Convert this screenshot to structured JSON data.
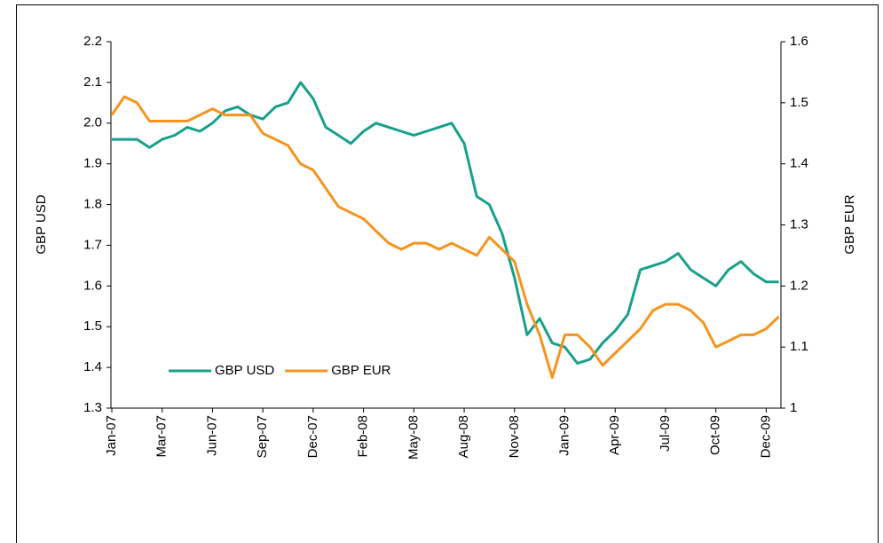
{
  "chart_data": {
    "type": "line",
    "categories": [
      "Jan-07",
      null,
      null,
      null,
      "Mar-07",
      null,
      null,
      null,
      "Jun-07",
      null,
      null,
      null,
      "Sep-07",
      null,
      null,
      null,
      "Dec-07",
      null,
      null,
      null,
      "Feb-08",
      null,
      null,
      null,
      "May-08",
      null,
      null,
      null,
      "Aug-08",
      null,
      null,
      null,
      "Nov-08",
      null,
      null,
      null,
      "Jan-09",
      null,
      null,
      null,
      "Apr-09",
      null,
      null,
      null,
      "Jul-09",
      null,
      null,
      null,
      "Oct-09",
      null,
      null,
      null,
      "Dec-09",
      null
    ],
    "series": [
      {
        "name": "GBP USD",
        "color": "#17a08c",
        "axis": "y",
        "values": [
          1.96,
          1.96,
          1.96,
          1.94,
          1.96,
          1.97,
          1.99,
          1.98,
          2.0,
          2.03,
          2.04,
          2.02,
          2.01,
          2.04,
          2.05,
          2.1,
          2.06,
          1.99,
          1.97,
          1.95,
          1.98,
          2.0,
          1.99,
          1.98,
          1.97,
          1.98,
          1.99,
          2.0,
          1.95,
          1.82,
          1.8,
          1.73,
          1.62,
          1.48,
          1.52,
          1.46,
          1.45,
          1.41,
          1.42,
          1.46,
          1.49,
          1.53,
          1.64,
          1.65,
          1.66,
          1.68,
          1.64,
          1.62,
          1.6,
          1.64,
          1.66,
          1.63,
          1.61,
          1.61
        ]
      },
      {
        "name": "GBP EUR",
        "color": "#f7941d",
        "axis": "y2",
        "values": [
          1.48,
          1.51,
          1.5,
          1.47,
          1.47,
          1.47,
          1.47,
          1.48,
          1.49,
          1.48,
          1.48,
          1.48,
          1.45,
          1.44,
          1.43,
          1.4,
          1.39,
          1.36,
          1.33,
          1.32,
          1.31,
          1.29,
          1.27,
          1.26,
          1.27,
          1.27,
          1.26,
          1.27,
          1.26,
          1.25,
          1.28,
          1.26,
          1.24,
          1.17,
          1.12,
          1.05,
          1.12,
          1.12,
          1.1,
          1.07,
          1.09,
          1.11,
          1.13,
          1.16,
          1.17,
          1.17,
          1.16,
          1.14,
          1.1,
          1.11,
          1.12,
          1.12,
          1.13,
          1.15
        ]
      }
    ],
    "y_label": "GBP USD",
    "y2_label": "GBP EUR",
    "ylim": [
      1.3,
      2.2
    ],
    "yticks": [
      1.3,
      1.4,
      1.5,
      1.6,
      1.7,
      1.8,
      1.9,
      {
        "value": 2,
        "label": "2.0"
      },
      2.1,
      2.2
    ],
    "y2lim": [
      1,
      1.6
    ],
    "y2ticks": [
      1,
      1.1,
      1.2,
      1.3,
      1.4,
      1.5,
      1.6
    ],
    "legend": "lower left"
  }
}
